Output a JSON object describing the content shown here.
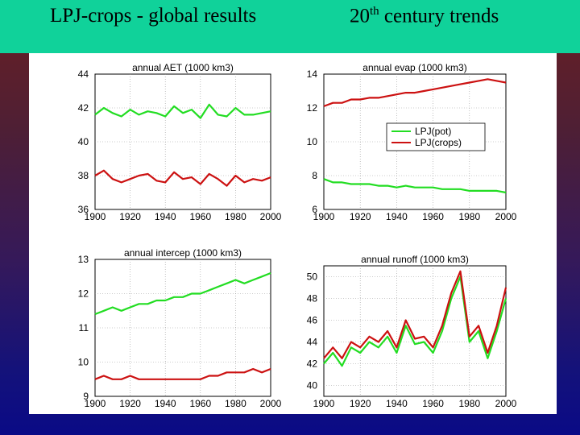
{
  "header": {
    "title_left": "LPJ-crops  -  global results",
    "title_right_prefix": "20",
    "title_right_sup": "th",
    "title_right_suffix": " century trends"
  },
  "colors": {
    "header_bg": "#10d29a",
    "pot": "#22dd22",
    "crops": "#cc1111"
  },
  "chart_data": [
    {
      "type": "line",
      "title": "annual AET (1000 km3)",
      "xlim": [
        1900,
        2000
      ],
      "ylim": [
        36,
        44
      ],
      "xticks": [
        1900,
        1920,
        1940,
        1960,
        1980,
        2000
      ],
      "yticks": [
        36,
        38,
        40,
        42,
        44
      ],
      "grid": true,
      "series": [
        {
          "color": "#22dd22",
          "x": [
            1900,
            1905,
            1910,
            1915,
            1920,
            1925,
            1930,
            1935,
            1940,
            1945,
            1950,
            1955,
            1960,
            1965,
            1970,
            1975,
            1980,
            1985,
            1990,
            1995,
            2000
          ],
          "values": [
            41.6,
            42.0,
            41.7,
            41.5,
            41.9,
            41.6,
            41.8,
            41.7,
            41.5,
            42.1,
            41.7,
            41.9,
            41.4,
            42.2,
            41.6,
            41.5,
            42.0,
            41.6,
            41.6,
            41.7,
            41.8
          ]
        },
        {
          "color": "#cc1111",
          "x": [
            1900,
            1905,
            1910,
            1915,
            1920,
            1925,
            1930,
            1935,
            1940,
            1945,
            1950,
            1955,
            1960,
            1965,
            1970,
            1975,
            1980,
            1985,
            1990,
            1995,
            2000
          ],
          "values": [
            38.0,
            38.3,
            37.8,
            37.6,
            37.8,
            38.0,
            38.1,
            37.7,
            37.6,
            38.2,
            37.8,
            37.9,
            37.5,
            38.1,
            37.8,
            37.4,
            38.0,
            37.6,
            37.8,
            37.7,
            37.9
          ]
        }
      ]
    },
    {
      "type": "line",
      "title": "annual evap (1000 km3)",
      "xlim": [
        1900,
        2000
      ],
      "ylim": [
        6,
        14
      ],
      "xticks": [
        1900,
        1920,
        1940,
        1960,
        1980,
        2000
      ],
      "yticks": [
        6,
        8,
        10,
        12,
        14
      ],
      "grid": true,
      "legend": "center-right",
      "series": [
        {
          "name": "LPJ(pot)",
          "color": "#22dd22",
          "x": [
            1900,
            1905,
            1910,
            1915,
            1920,
            1925,
            1930,
            1935,
            1940,
            1945,
            1950,
            1955,
            1960,
            1965,
            1970,
            1975,
            1980,
            1985,
            1990,
            1995,
            2000
          ],
          "values": [
            7.8,
            7.6,
            7.6,
            7.5,
            7.5,
            7.5,
            7.4,
            7.4,
            7.3,
            7.4,
            7.3,
            7.3,
            7.3,
            7.2,
            7.2,
            7.2,
            7.1,
            7.1,
            7.1,
            7.1,
            7.0
          ]
        },
        {
          "name": "LPJ(crops)",
          "color": "#cc1111",
          "x": [
            1900,
            1905,
            1910,
            1915,
            1920,
            1925,
            1930,
            1935,
            1940,
            1945,
            1950,
            1955,
            1960,
            1965,
            1970,
            1975,
            1980,
            1985,
            1990,
            1995,
            2000
          ],
          "values": [
            12.1,
            12.3,
            12.3,
            12.5,
            12.5,
            12.6,
            12.6,
            12.7,
            12.8,
            12.9,
            12.9,
            13.0,
            13.1,
            13.2,
            13.3,
            13.4,
            13.5,
            13.6,
            13.7,
            13.6,
            13.5
          ]
        }
      ]
    },
    {
      "type": "line",
      "title": "annual intercep (1000 km3)",
      "xlim": [
        1900,
        2000
      ],
      "ylim": [
        9,
        13
      ],
      "xticks": [
        1900,
        1920,
        1940,
        1960,
        1980,
        2000
      ],
      "yticks": [
        9,
        10,
        11,
        12,
        13
      ],
      "grid": true,
      "series": [
        {
          "color": "#22dd22",
          "x": [
            1900,
            1905,
            1910,
            1915,
            1920,
            1925,
            1930,
            1935,
            1940,
            1945,
            1950,
            1955,
            1960,
            1965,
            1970,
            1975,
            1980,
            1985,
            1990,
            1995,
            2000
          ],
          "values": [
            11.4,
            11.5,
            11.6,
            11.5,
            11.6,
            11.7,
            11.7,
            11.8,
            11.8,
            11.9,
            11.9,
            12.0,
            12.0,
            12.1,
            12.2,
            12.3,
            12.4,
            12.3,
            12.4,
            12.5,
            12.6
          ]
        },
        {
          "color": "#cc1111",
          "x": [
            1900,
            1905,
            1910,
            1915,
            1920,
            1925,
            1930,
            1935,
            1940,
            1945,
            1950,
            1955,
            1960,
            1965,
            1970,
            1975,
            1980,
            1985,
            1990,
            1995,
            2000
          ],
          "values": [
            9.5,
            9.6,
            9.5,
            9.5,
            9.6,
            9.5,
            9.5,
            9.5,
            9.5,
            9.5,
            9.5,
            9.5,
            9.5,
            9.6,
            9.6,
            9.7,
            9.7,
            9.7,
            9.8,
            9.7,
            9.8
          ]
        }
      ]
    },
    {
      "type": "line",
      "title": "annual runoff (1000 km3)",
      "xlim": [
        1900,
        2000
      ],
      "ylim": [
        39,
        51
      ],
      "xticks": [
        1900,
        1920,
        1940,
        1960,
        1980,
        2000
      ],
      "yticks": [
        40,
        42,
        44,
        46,
        48,
        50
      ],
      "grid": true,
      "series": [
        {
          "color": "#22dd22",
          "x": [
            1900,
            1905,
            1910,
            1915,
            1920,
            1925,
            1930,
            1935,
            1940,
            1945,
            1950,
            1955,
            1960,
            1965,
            1970,
            1975,
            1980,
            1985,
            1990,
            1995,
            2000
          ],
          "values": [
            42.0,
            43.0,
            41.8,
            43.5,
            43.0,
            44.0,
            43.5,
            44.5,
            43.0,
            45.5,
            43.8,
            44.0,
            43.0,
            45.0,
            48.0,
            50.0,
            44.0,
            45.0,
            42.5,
            45.0,
            48.0
          ]
        },
        {
          "color": "#cc1111",
          "x": [
            1900,
            1905,
            1910,
            1915,
            1920,
            1925,
            1930,
            1935,
            1940,
            1945,
            1950,
            1955,
            1960,
            1965,
            1970,
            1975,
            1980,
            1985,
            1990,
            1995,
            2000
          ],
          "values": [
            42.5,
            43.5,
            42.5,
            44.0,
            43.5,
            44.5,
            44.0,
            45.0,
            43.5,
            46.0,
            44.3,
            44.5,
            43.5,
            45.5,
            48.5,
            50.5,
            44.5,
            45.5,
            43.0,
            45.5,
            49.0
          ]
        }
      ]
    }
  ]
}
